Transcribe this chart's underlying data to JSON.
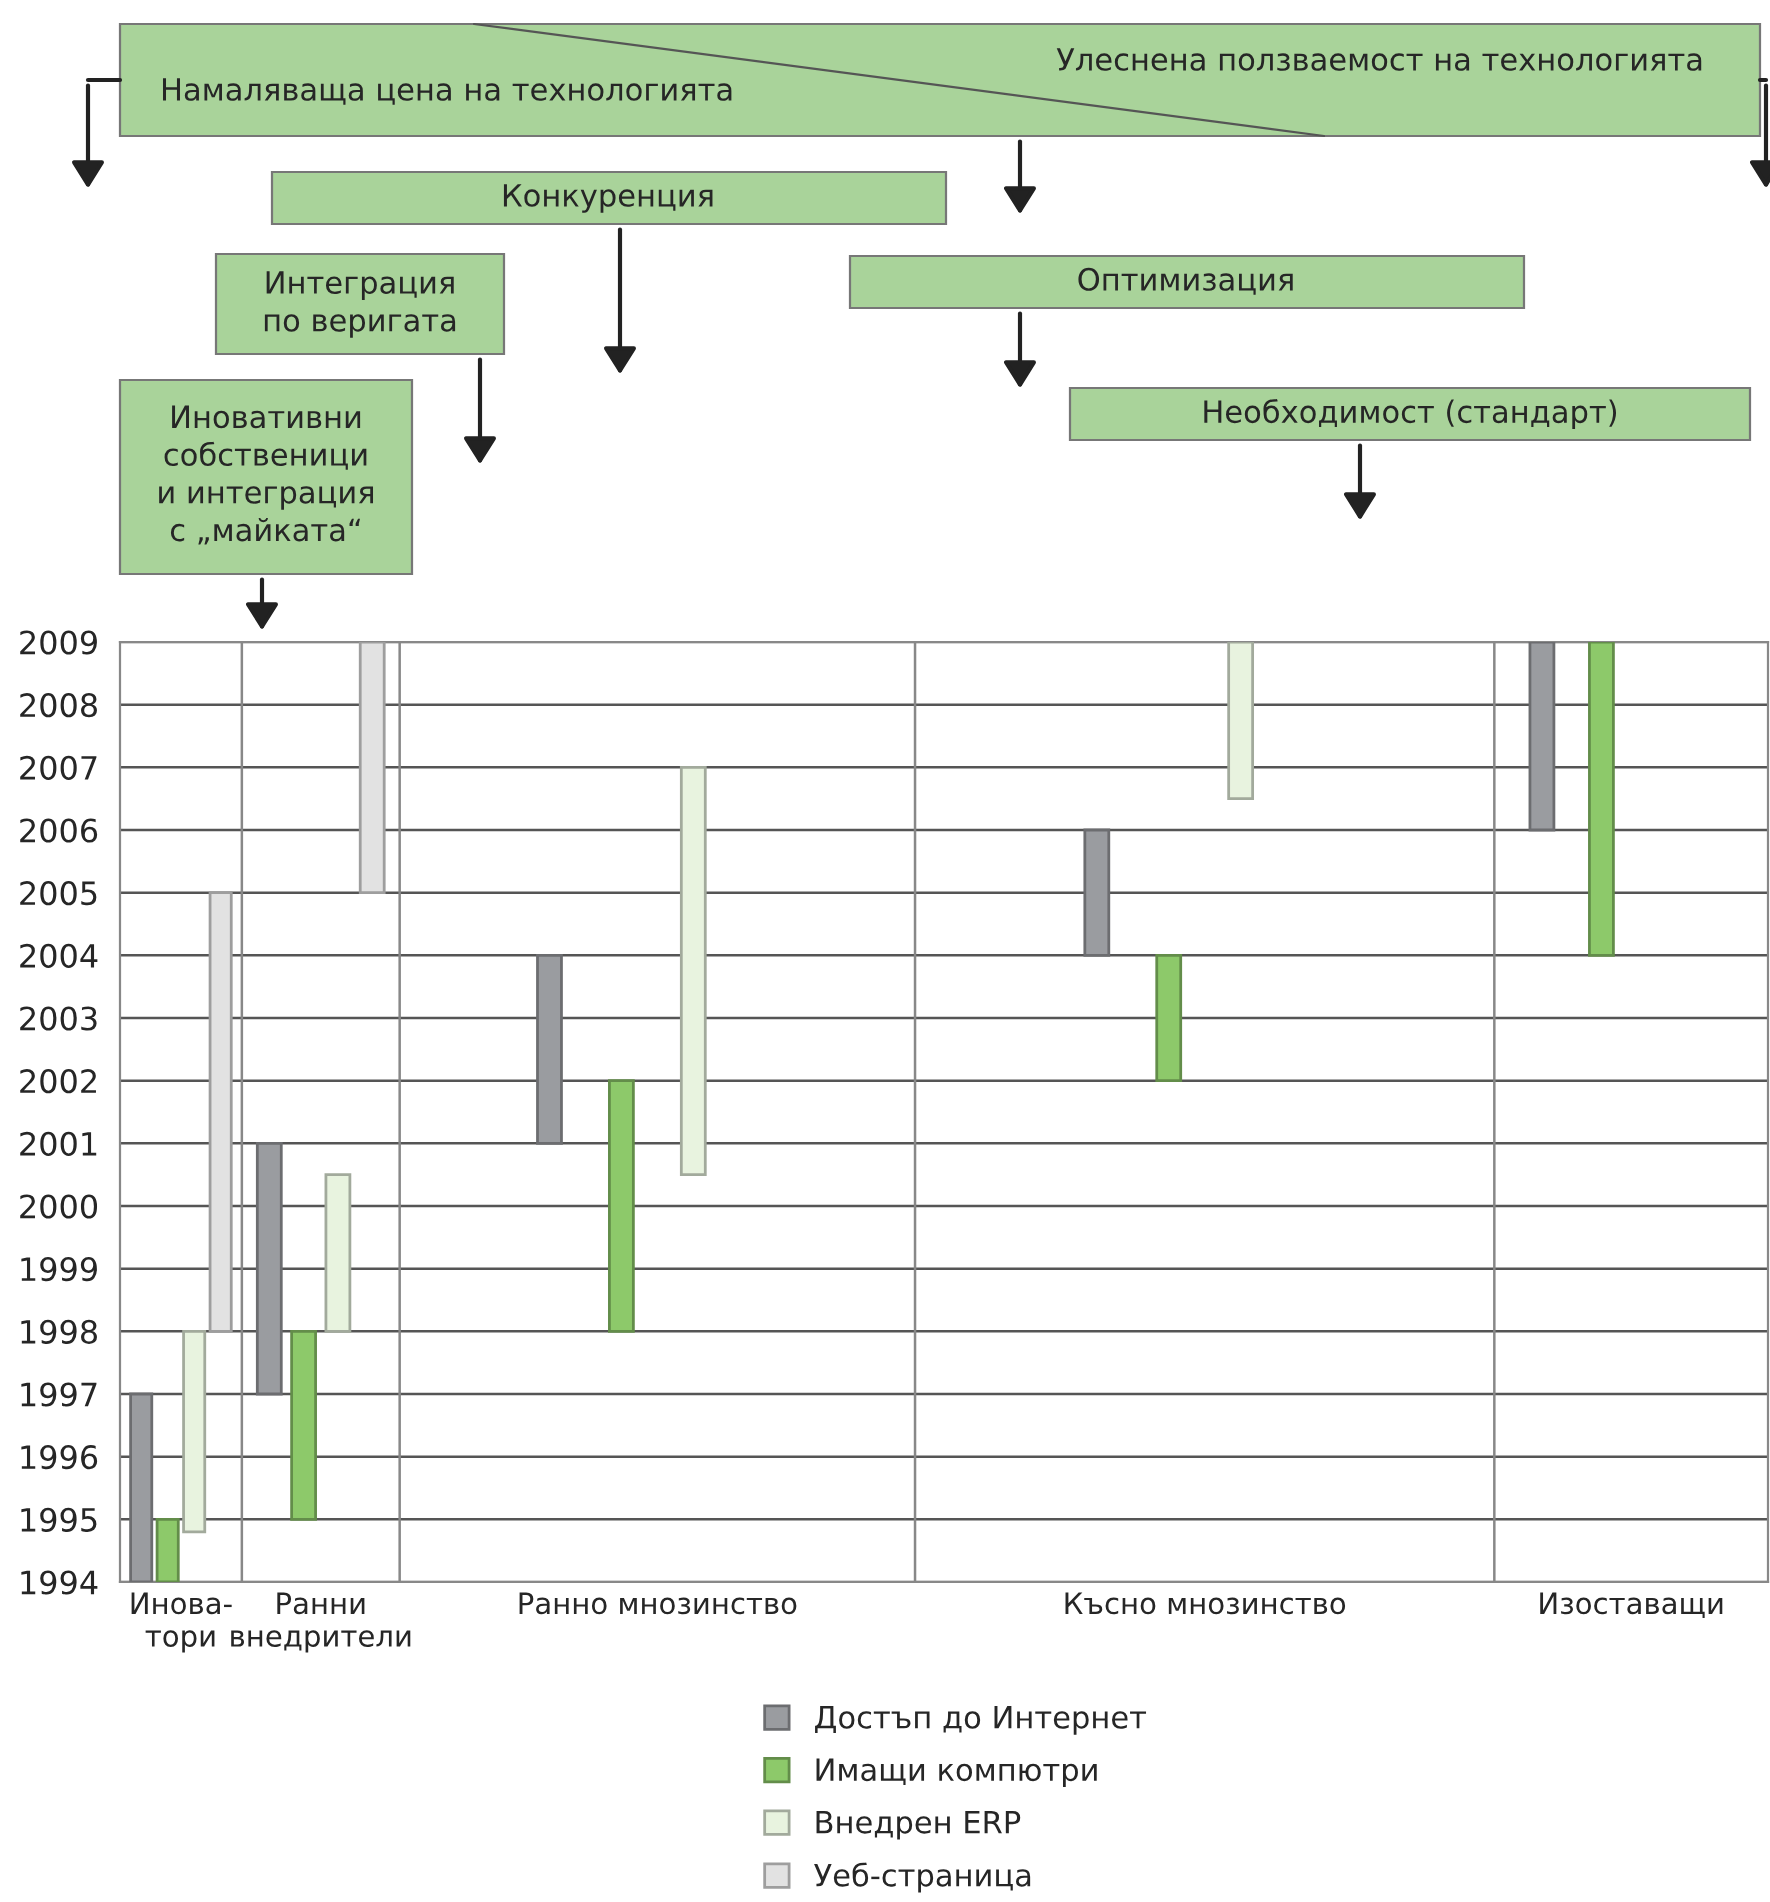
{
  "chart_data": {
    "type": "bar",
    "categories": [
      "Инова-\nтори",
      "Ранни\nвнедрители",
      "Ранно мнозинство",
      "Късно мнозинство",
      "Изоставащи"
    ],
    "series": [
      {
        "name": "Достъп до Интернет",
        "color": "#9a9ca0",
        "base": [
          1994,
          1997,
          2001,
          2004,
          2006
        ],
        "values": [
          3,
          4,
          3,
          2,
          3
        ]
      },
      {
        "name": "Имащи компютри",
        "color": "#8dc96a",
        "base": [
          1994,
          1995,
          1998,
          2002,
          2004
        ],
        "values": [
          1,
          3,
          4,
          2,
          5
        ]
      },
      {
        "name": "Внедрен ERP",
        "color": "#e8f3df",
        "base": [
          1994.8,
          1998,
          2000.5,
          2006.5,
          null
        ],
        "values": [
          3.2,
          2.5,
          6.5,
          2.5,
          null
        ]
      },
      {
        "name": "Уеб-страница",
        "color": "#e2e2e2",
        "base": [
          1998,
          2005,
          null,
          null,
          null
        ],
        "values": [
          7,
          4,
          null,
          null,
          null
        ]
      }
    ],
    "ylim": [
      1994,
      2009
    ],
    "yticks": [
      1994,
      1995,
      1996,
      1997,
      1998,
      1999,
      2000,
      2001,
      2002,
      2003,
      2004,
      2005,
      2006,
      2007,
      2008,
      2009
    ],
    "grid": "y",
    "legend": "bottom",
    "annotations": [
      "Намаляваща цена на технологията",
      "Улеснена ползваемост на технологията",
      "Конкуренция",
      "Интеграция\nпо веригата",
      "Оптимизация",
      "Необходимост (стандарт)",
      "Иновативни\nсобственици\nи интеграция\nс „майката“"
    ]
  }
}
